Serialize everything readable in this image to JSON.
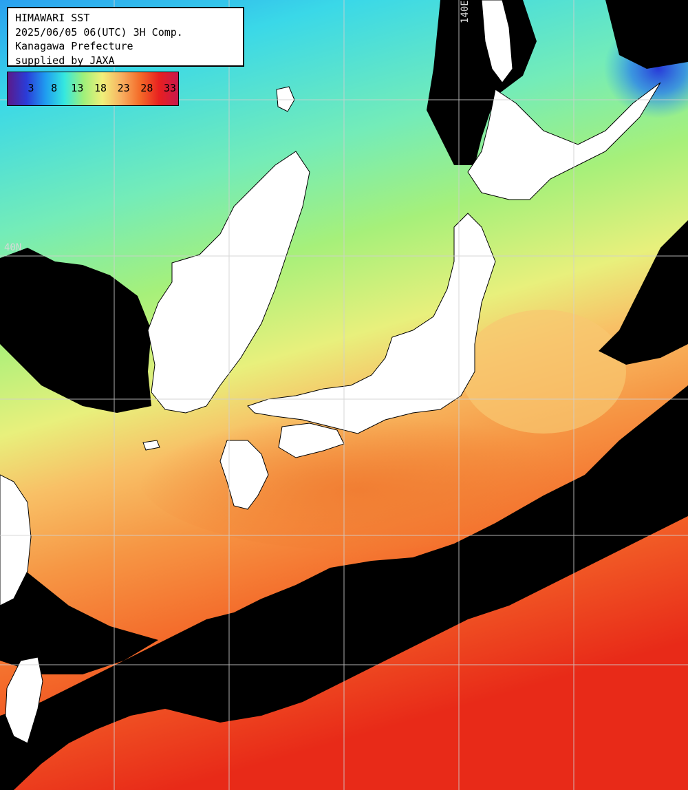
{
  "header": {
    "line1": "HIMAWARI SST",
    "line2": "2025/06/05 06(UTC) 3H Comp.",
    "line3": "Kanagawa Prefecture",
    "line4": "supplied by JAXA"
  },
  "colorbar": {
    "ticks": [
      "3",
      "8",
      "13",
      "18",
      "23",
      "28",
      "33"
    ],
    "stops": [
      "#5b1a8a",
      "#2a3cd8",
      "#1f9cf0",
      "#35e8e0",
      "#9ef07a",
      "#f0f07a",
      "#f8b060",
      "#f46a28",
      "#e82020",
      "#c8184c"
    ]
  },
  "grid": {
    "lat_label": "40N",
    "lon_label": "140E"
  },
  "colors": {
    "land": "#ffffff",
    "cloud": "#000000",
    "gridline": "#d0d0d0"
  }
}
